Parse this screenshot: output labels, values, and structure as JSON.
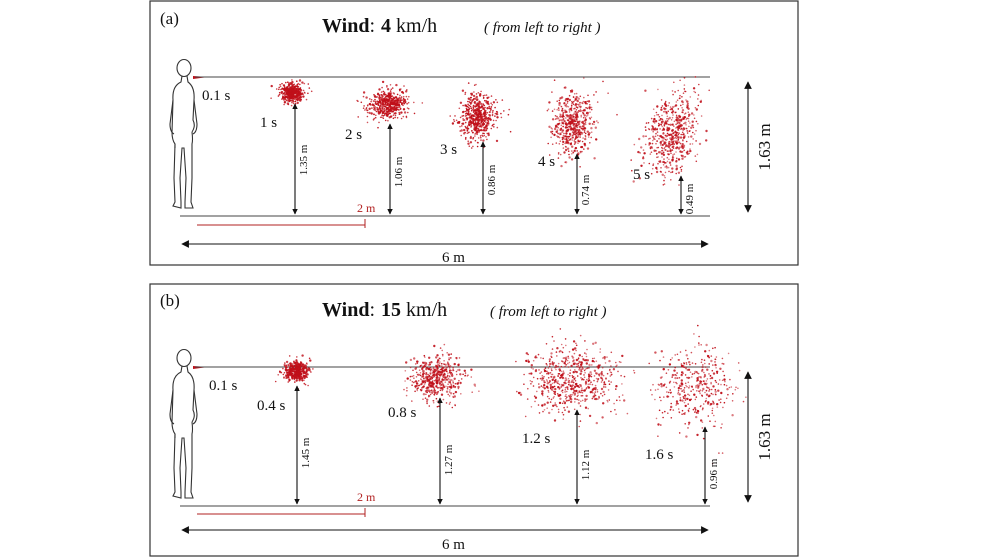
{
  "panels": [
    {
      "id": "a",
      "label": "(a)",
      "wind_word": "Wind",
      "colon": ":",
      "wind_speed": "4",
      "wind_unit": "km/h",
      "wind_color": "#1a8a1a",
      "direction": "( from left to right )",
      "initial_time": "0.1 s",
      "short_distance": "2 m",
      "total_distance": "6 m",
      "person_height": "1.63 m",
      "clouds": [
        {
          "time": "1 s",
          "height": "1.35 m"
        },
        {
          "time": "2 s",
          "height": "1.06 m"
        },
        {
          "time": "3 s",
          "height": "0.86 m"
        },
        {
          "time": "4 s",
          "height": "0.74 m"
        },
        {
          "time": "5 s",
          "height": "0.49 m"
        }
      ]
    },
    {
      "id": "b",
      "label": "(b)",
      "wind_word": "Wind",
      "colon": ":",
      "wind_speed": "15",
      "wind_unit": "km/h",
      "wind_color": "#d42020",
      "direction": "( from left to right )",
      "initial_time": "0.1 s",
      "short_distance": "2 m",
      "total_distance": "6 m",
      "person_height": "1.63 m",
      "clouds": [
        {
          "time": "0.4 s",
          "height": "1.45 m"
        },
        {
          "time": "0.8 s",
          "height": "1.27 m"
        },
        {
          "time": "1.2 s",
          "height": "1.12 m"
        },
        {
          "time": "1.6 s",
          "height": "0.96 m"
        }
      ]
    }
  ],
  "colors": {
    "droplet": "#c0101a",
    "distance_line": "#b22222"
  }
}
